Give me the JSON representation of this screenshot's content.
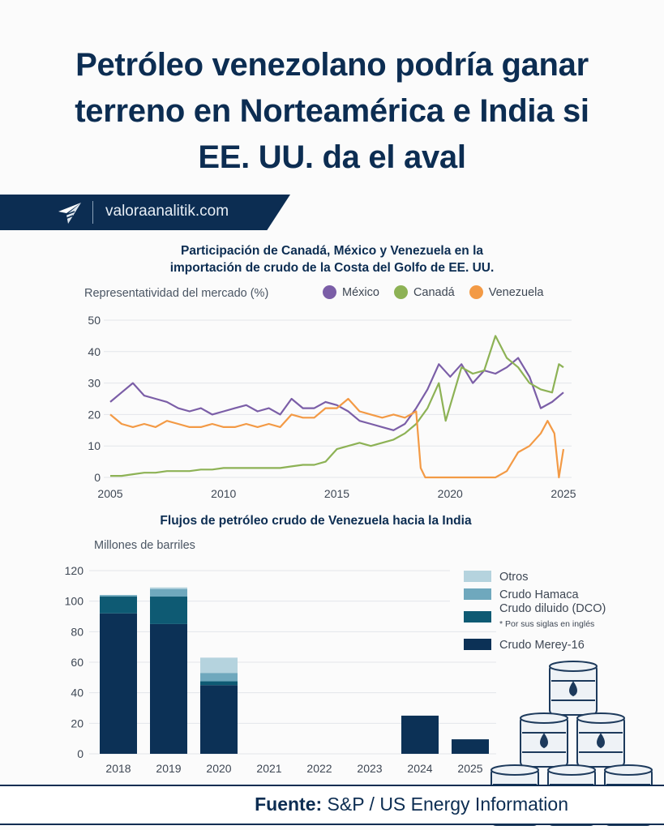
{
  "header": {
    "title_lines": [
      "Petróleo venezolano podría ganar",
      "terreno en Norteamérica e India si",
      "EE. UU. da el aval"
    ],
    "site": "valoraanalitik.com"
  },
  "footer": {
    "source_label": "Fuente:",
    "source_text": "S&P / US Energy Information"
  },
  "colors": {
    "navy": "#0c2d52",
    "mexico": "#7b5ea7",
    "canada": "#8db255",
    "venezuela": "#f39a45",
    "merey": "#0c3156",
    "dco": "#0e5a73",
    "hamaca": "#6fa8bd",
    "otros": "#b5d3de"
  },
  "chart_data": [
    {
      "type": "line",
      "title_lines": [
        "Participación de Canadá, México y Venezuela en la",
        "importación de crudo de la Costa del Golfo de EE. UU."
      ],
      "ylabel": "Representatividad del mercado (%)",
      "xlim": [
        2005,
        2025
      ],
      "ylim": [
        0,
        50
      ],
      "xticks": [
        "2005",
        "2010",
        "2015",
        "2020",
        "2025"
      ],
      "yticks": [
        "0",
        "10",
        "20",
        "30",
        "40",
        "50"
      ],
      "grid": true,
      "legend_position": "top",
      "series": [
        {
          "name": "México",
          "color": "#7b5ea7",
          "points": [
            [
              2005,
              24
            ],
            [
              2005.5,
              27
            ],
            [
              2006,
              30
            ],
            [
              2006.5,
              26
            ],
            [
              2007,
              25
            ],
            [
              2007.5,
              24
            ],
            [
              2008,
              22
            ],
            [
              2008.5,
              21
            ],
            [
              2009,
              22
            ],
            [
              2009.5,
              20
            ],
            [
              2010,
              21
            ],
            [
              2010.5,
              22
            ],
            [
              2011,
              23
            ],
            [
              2011.5,
              21
            ],
            [
              2012,
              22
            ],
            [
              2012.5,
              20
            ],
            [
              2013,
              25
            ],
            [
              2013.5,
              22
            ],
            [
              2014,
              22
            ],
            [
              2014.5,
              24
            ],
            [
              2015,
              23
            ],
            [
              2015.5,
              21
            ],
            [
              2016,
              18
            ],
            [
              2016.5,
              17
            ],
            [
              2017,
              16
            ],
            [
              2017.5,
              15
            ],
            [
              2018,
              17
            ],
            [
              2018.5,
              22
            ],
            [
              2019,
              28
            ],
            [
              2019.5,
              36
            ],
            [
              2020,
              32
            ],
            [
              2020.5,
              36
            ],
            [
              2021,
              30
            ],
            [
              2021.5,
              34
            ],
            [
              2022,
              33
            ],
            [
              2022.5,
              35
            ],
            [
              2023,
              38
            ],
            [
              2023.5,
              32
            ],
            [
              2024,
              22
            ],
            [
              2024.5,
              24
            ],
            [
              2025,
              27
            ]
          ]
        },
        {
          "name": "Canadá",
          "color": "#8db255",
          "points": [
            [
              2005,
              0.5
            ],
            [
              2005.5,
              0.5
            ],
            [
              2006,
              1
            ],
            [
              2006.5,
              1.5
            ],
            [
              2007,
              1.5
            ],
            [
              2007.5,
              2
            ],
            [
              2008,
              2
            ],
            [
              2008.5,
              2
            ],
            [
              2009,
              2.5
            ],
            [
              2009.5,
              2.5
            ],
            [
              2010,
              3
            ],
            [
              2010.5,
              3
            ],
            [
              2011,
              3
            ],
            [
              2011.5,
              3
            ],
            [
              2012,
              3
            ],
            [
              2012.5,
              3
            ],
            [
              2013,
              3.5
            ],
            [
              2013.5,
              4
            ],
            [
              2014,
              4
            ],
            [
              2014.5,
              5
            ],
            [
              2015,
              9
            ],
            [
              2015.5,
              10
            ],
            [
              2016,
              11
            ],
            [
              2016.5,
              10
            ],
            [
              2017,
              11
            ],
            [
              2017.5,
              12
            ],
            [
              2018,
              14
            ],
            [
              2018.5,
              17
            ],
            [
              2019,
              22
            ],
            [
              2019.5,
              30
            ],
            [
              2019.8,
              18
            ],
            [
              2020.5,
              35
            ],
            [
              2021,
              33
            ],
            [
              2021.5,
              34
            ],
            [
              2022,
              45
            ],
            [
              2022.5,
              38
            ],
            [
              2023,
              35
            ],
            [
              2023.5,
              30
            ],
            [
              2024,
              28
            ],
            [
              2024.5,
              27
            ],
            [
              2024.8,
              36
            ],
            [
              2025,
              35
            ]
          ]
        },
        {
          "name": "Venezuela",
          "color": "#f39a45",
          "points": [
            [
              2005,
              20
            ],
            [
              2005.5,
              17
            ],
            [
              2006,
              16
            ],
            [
              2006.5,
              17
            ],
            [
              2007,
              16
            ],
            [
              2007.5,
              18
            ],
            [
              2008,
              17
            ],
            [
              2008.5,
              16
            ],
            [
              2009,
              16
            ],
            [
              2009.5,
              17
            ],
            [
              2010,
              16
            ],
            [
              2010.5,
              16
            ],
            [
              2011,
              17
            ],
            [
              2011.5,
              16
            ],
            [
              2012,
              17
            ],
            [
              2012.5,
              16
            ],
            [
              2013,
              20
            ],
            [
              2013.5,
              19
            ],
            [
              2014,
              19
            ],
            [
              2014.5,
              22
            ],
            [
              2015,
              22
            ],
            [
              2015.5,
              25
            ],
            [
              2016,
              21
            ],
            [
              2016.5,
              20
            ],
            [
              2017,
              19
            ],
            [
              2017.5,
              20
            ],
            [
              2018,
              19
            ],
            [
              2018.5,
              21
            ],
            [
              2018.7,
              3
            ],
            [
              2018.9,
              0
            ],
            [
              2019.5,
              0
            ],
            [
              2020,
              0
            ],
            [
              2021,
              0
            ],
            [
              2022,
              0
            ],
            [
              2022.5,
              2
            ],
            [
              2023,
              8
            ],
            [
              2023.5,
              10
            ],
            [
              2024,
              14
            ],
            [
              2024.3,
              18
            ],
            [
              2024.6,
              14
            ],
            [
              2024.8,
              0
            ],
            [
              2025,
              9
            ]
          ]
        }
      ]
    },
    {
      "type": "bar",
      "stacked": true,
      "title": "Flujos de petróleo crudo de Venezuela hacia la India",
      "ylabel": "Millones de barriles",
      "ylim": [
        0,
        120
      ],
      "yticks": [
        "0",
        "20",
        "40",
        "60",
        "80",
        "100",
        "120"
      ],
      "grid": true,
      "legend_position": "right",
      "categories": [
        "2018",
        "2019",
        "2020",
        "2021",
        "2022",
        "2023",
        "2024",
        "2025"
      ],
      "series": [
        {
          "name": "Crudo Merey-16",
          "color": "#0c3156",
          "values": [
            92,
            85,
            45,
            0,
            0,
            0,
            25,
            9.5
          ]
        },
        {
          "name": "Crudo diluido (DCO)",
          "note": "* Por sus siglas en inglés",
          "color": "#0e5a73",
          "values": [
            11,
            18,
            2.5,
            0,
            0,
            0,
            0,
            0
          ]
        },
        {
          "name": "Crudo Hamaca",
          "color": "#6fa8bd",
          "values": [
            1,
            5,
            5.5,
            0,
            0,
            0,
            0,
            0
          ]
        },
        {
          "name": "Otros",
          "color": "#b5d3de",
          "values": [
            0,
            1,
            10,
            0,
            0,
            0,
            0,
            0
          ]
        }
      ]
    }
  ]
}
